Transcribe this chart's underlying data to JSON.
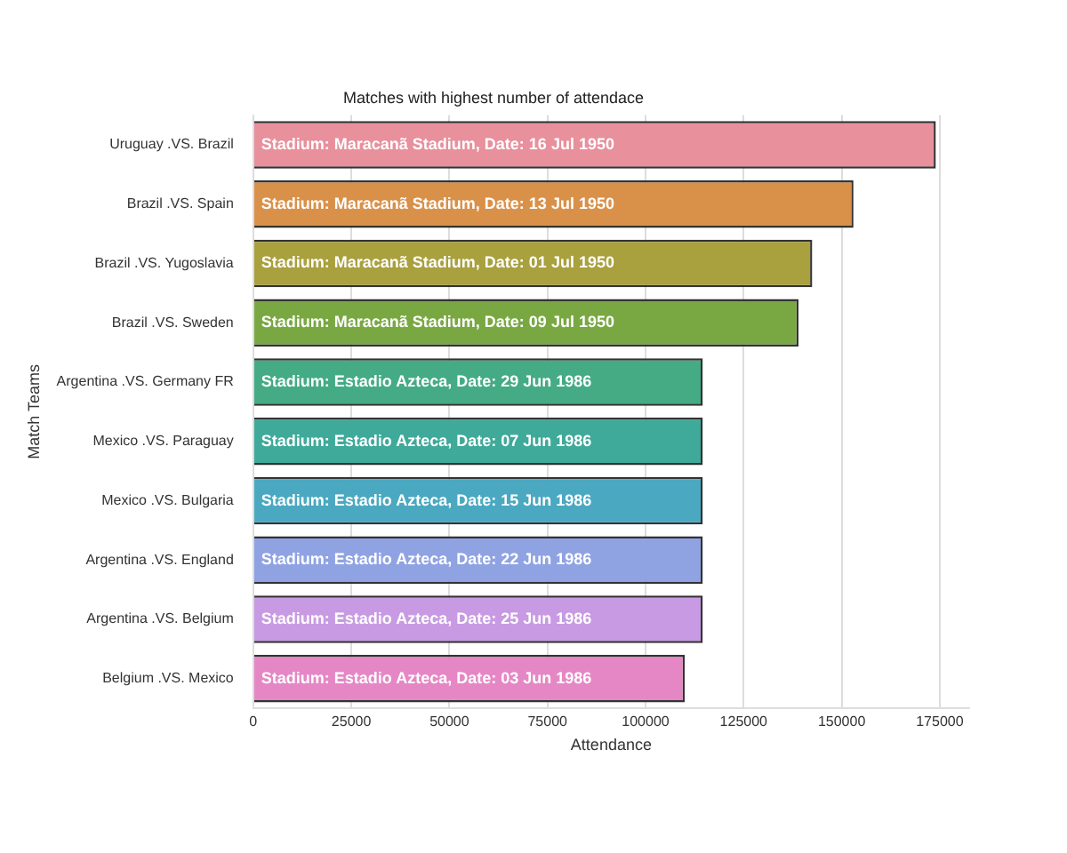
{
  "chart_data": {
    "type": "bar",
    "orientation": "horizontal",
    "title": "Matches with highest number of attendace",
    "xlabel": "Attendance",
    "ylabel": "Match Teams",
    "categories": [
      "Uruguay .VS. Brazil",
      "Brazil .VS. Spain",
      "Brazil .VS. Yugoslavia",
      "Brazil .VS. Sweden",
      "Argentina .VS. Germany FR",
      "Mexico .VS. Paraguay",
      "Mexico .VS. Bulgaria",
      "Argentina .VS. England",
      "Argentina .VS. Belgium",
      "Belgium .VS. Mexico"
    ],
    "values": [
      174000,
      153000,
      142500,
      139000,
      114600,
      114600,
      114600,
      114600,
      114600,
      110000
    ],
    "colors": [
      "#e8909c",
      "#d9914a",
      "#a9a03e",
      "#79a843",
      "#44ab84",
      "#3fa99a",
      "#4aa8c0",
      "#8fa3e3",
      "#c89ae3",
      "#e587c5"
    ],
    "value_labels": [
      "Stadium: Maracanã Stadium, Date: 16 Jul 1950",
      "Stadium: Maracanã Stadium, Date: 13 Jul 1950",
      "Stadium: Maracanã Stadium, Date: 01 Jul 1950",
      "Stadium: Maracanã Stadium, Date: 09 Jul 1950",
      "Stadium: Estadio Azteca, Date: 29 Jun 1986",
      "Stadium: Estadio Azteca, Date: 07 Jun 1986",
      "Stadium: Estadio Azteca, Date: 15 Jun 1986",
      "Stadium: Estadio Azteca, Date: 22 Jun 1986",
      "Stadium: Estadio Azteca, Date: 25 Jun 1986",
      "Stadium: Estadio Azteca, Date: 03 Jun 1986"
    ],
    "xlim": [
      0,
      182500
    ],
    "xticks": [
      0,
      25000,
      50000,
      75000,
      100000,
      125000,
      150000,
      175000
    ],
    "grid": "x",
    "legend": false
  }
}
